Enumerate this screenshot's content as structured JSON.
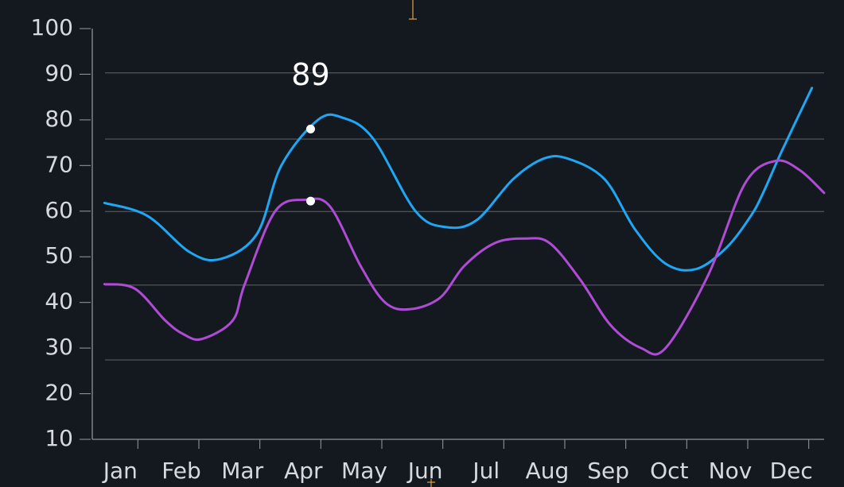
{
  "colors": {
    "background": "#141920",
    "axis": "#8e9196",
    "grid": "#4c5054",
    "tick_text": "#d6d9de",
    "highlight": "#ffffff",
    "cursor": "#e8a13a"
  },
  "chart_data": {
    "type": "line",
    "x": [
      1,
      2,
      3,
      4,
      5,
      6,
      7,
      8,
      9,
      10,
      11,
      12
    ],
    "x_ticks": [
      "Jan",
      "Feb",
      "Mar",
      "Apr",
      "May",
      "Jun",
      "Jul",
      "Aug",
      "Sep",
      "Oct",
      "Nov",
      "Dec"
    ],
    "xlim": [
      0.8,
      12.8
    ],
    "ylim": [
      10,
      100
    ],
    "y_ticks": [
      10,
      20,
      30,
      40,
      50,
      60,
      70,
      80,
      90,
      100
    ],
    "grid": true,
    "grid_lines": [
      27.4,
      43.8,
      59.9,
      75.8,
      90.3
    ],
    "series": [
      {
        "color": "#1ea7f4",
        "x": [
          1.0,
          1.7,
          2.4,
          2.9,
          3.5,
          3.9,
          4.5,
          4.9,
          5.4,
          6.1,
          6.6,
          7.1,
          7.7,
          8.2,
          8.6,
          9.2,
          9.7,
          10.2,
          10.7,
          11.2,
          11.6,
          11.8,
          12.1,
          12.6
        ],
        "y": [
          61.8,
          59,
          51,
          49.5,
          55,
          70,
          80,
          80.5,
          76,
          60,
          56.5,
          58,
          67,
          71.5,
          71.5,
          67,
          56,
          48.5,
          47.3,
          52,
          59,
          64,
          73,
          87
        ]
      },
      {
        "color": "#b04bd6",
        "x": [
          1.0,
          1.5,
          2.0,
          2.3,
          2.6,
          3.1,
          3.3,
          3.8,
          4.3,
          4.7,
          5.2,
          5.6,
          6.0,
          6.5,
          6.9,
          7.4,
          7.9,
          8.3,
          8.8,
          9.3,
          9.8,
          10.2,
          10.9,
          11.5,
          12.0,
          12.4,
          12.8
        ],
        "y": [
          44,
          43,
          36,
          33,
          32,
          36,
          44,
          60,
          62.5,
          61,
          48,
          40,
          38.5,
          41,
          48,
          53,
          54,
          53,
          45,
          35,
          30,
          30,
          46,
          66,
          71,
          69,
          64
        ]
      }
    ],
    "highlight_x": 4.38,
    "data_labels": [
      {
        "text": "89",
        "x": 4.38,
        "y": 89.5
      }
    ]
  }
}
